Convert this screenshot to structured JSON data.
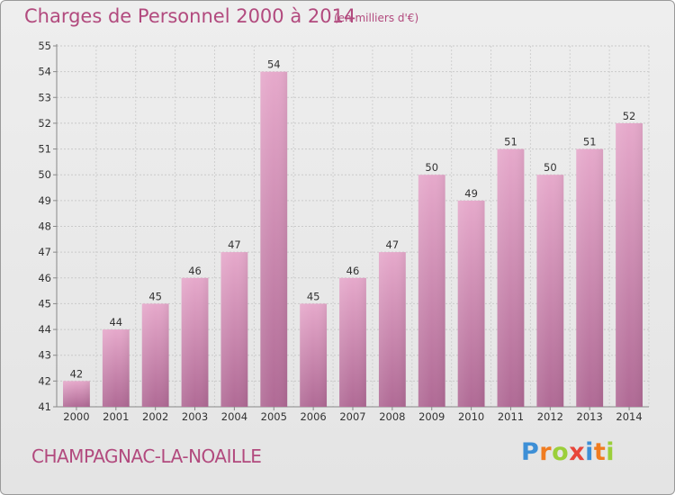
{
  "header": {
    "title": "Charges de Personnel 2000 à 2014",
    "subtitle": "(en milliers d'€)"
  },
  "footer": {
    "commune": "CHAMPAGNAC-LA-NOAILLE",
    "logo_letters": [
      "P",
      "r",
      "o",
      "x",
      "i",
      "t",
      "i"
    ],
    "logo_colors": [
      "#3d8fd6",
      "#f07c20",
      "#9bcf3a",
      "#e8463a",
      "#3d8fd6",
      "#f07c20",
      "#9bcf3a"
    ]
  },
  "chart_data": {
    "type": "bar",
    "title": "Charges de Personnel 2000 à 2014",
    "subtitle": "(en milliers d'€)",
    "categories": [
      "2000",
      "2001",
      "2002",
      "2003",
      "2004",
      "2005",
      "2006",
      "2007",
      "2008",
      "2009",
      "2010",
      "2011",
      "2012",
      "2013",
      "2014"
    ],
    "values": [
      42,
      44,
      45,
      46,
      47,
      54,
      45,
      46,
      47,
      50,
      49,
      51,
      50,
      51,
      52
    ],
    "ylim": [
      41,
      55
    ],
    "yticks": [
      41,
      42,
      43,
      44,
      45,
      46,
      47,
      48,
      49,
      50,
      51,
      52,
      53,
      54,
      55
    ],
    "grid": true,
    "bar_color": "#d884b0",
    "data_labels": true
  }
}
